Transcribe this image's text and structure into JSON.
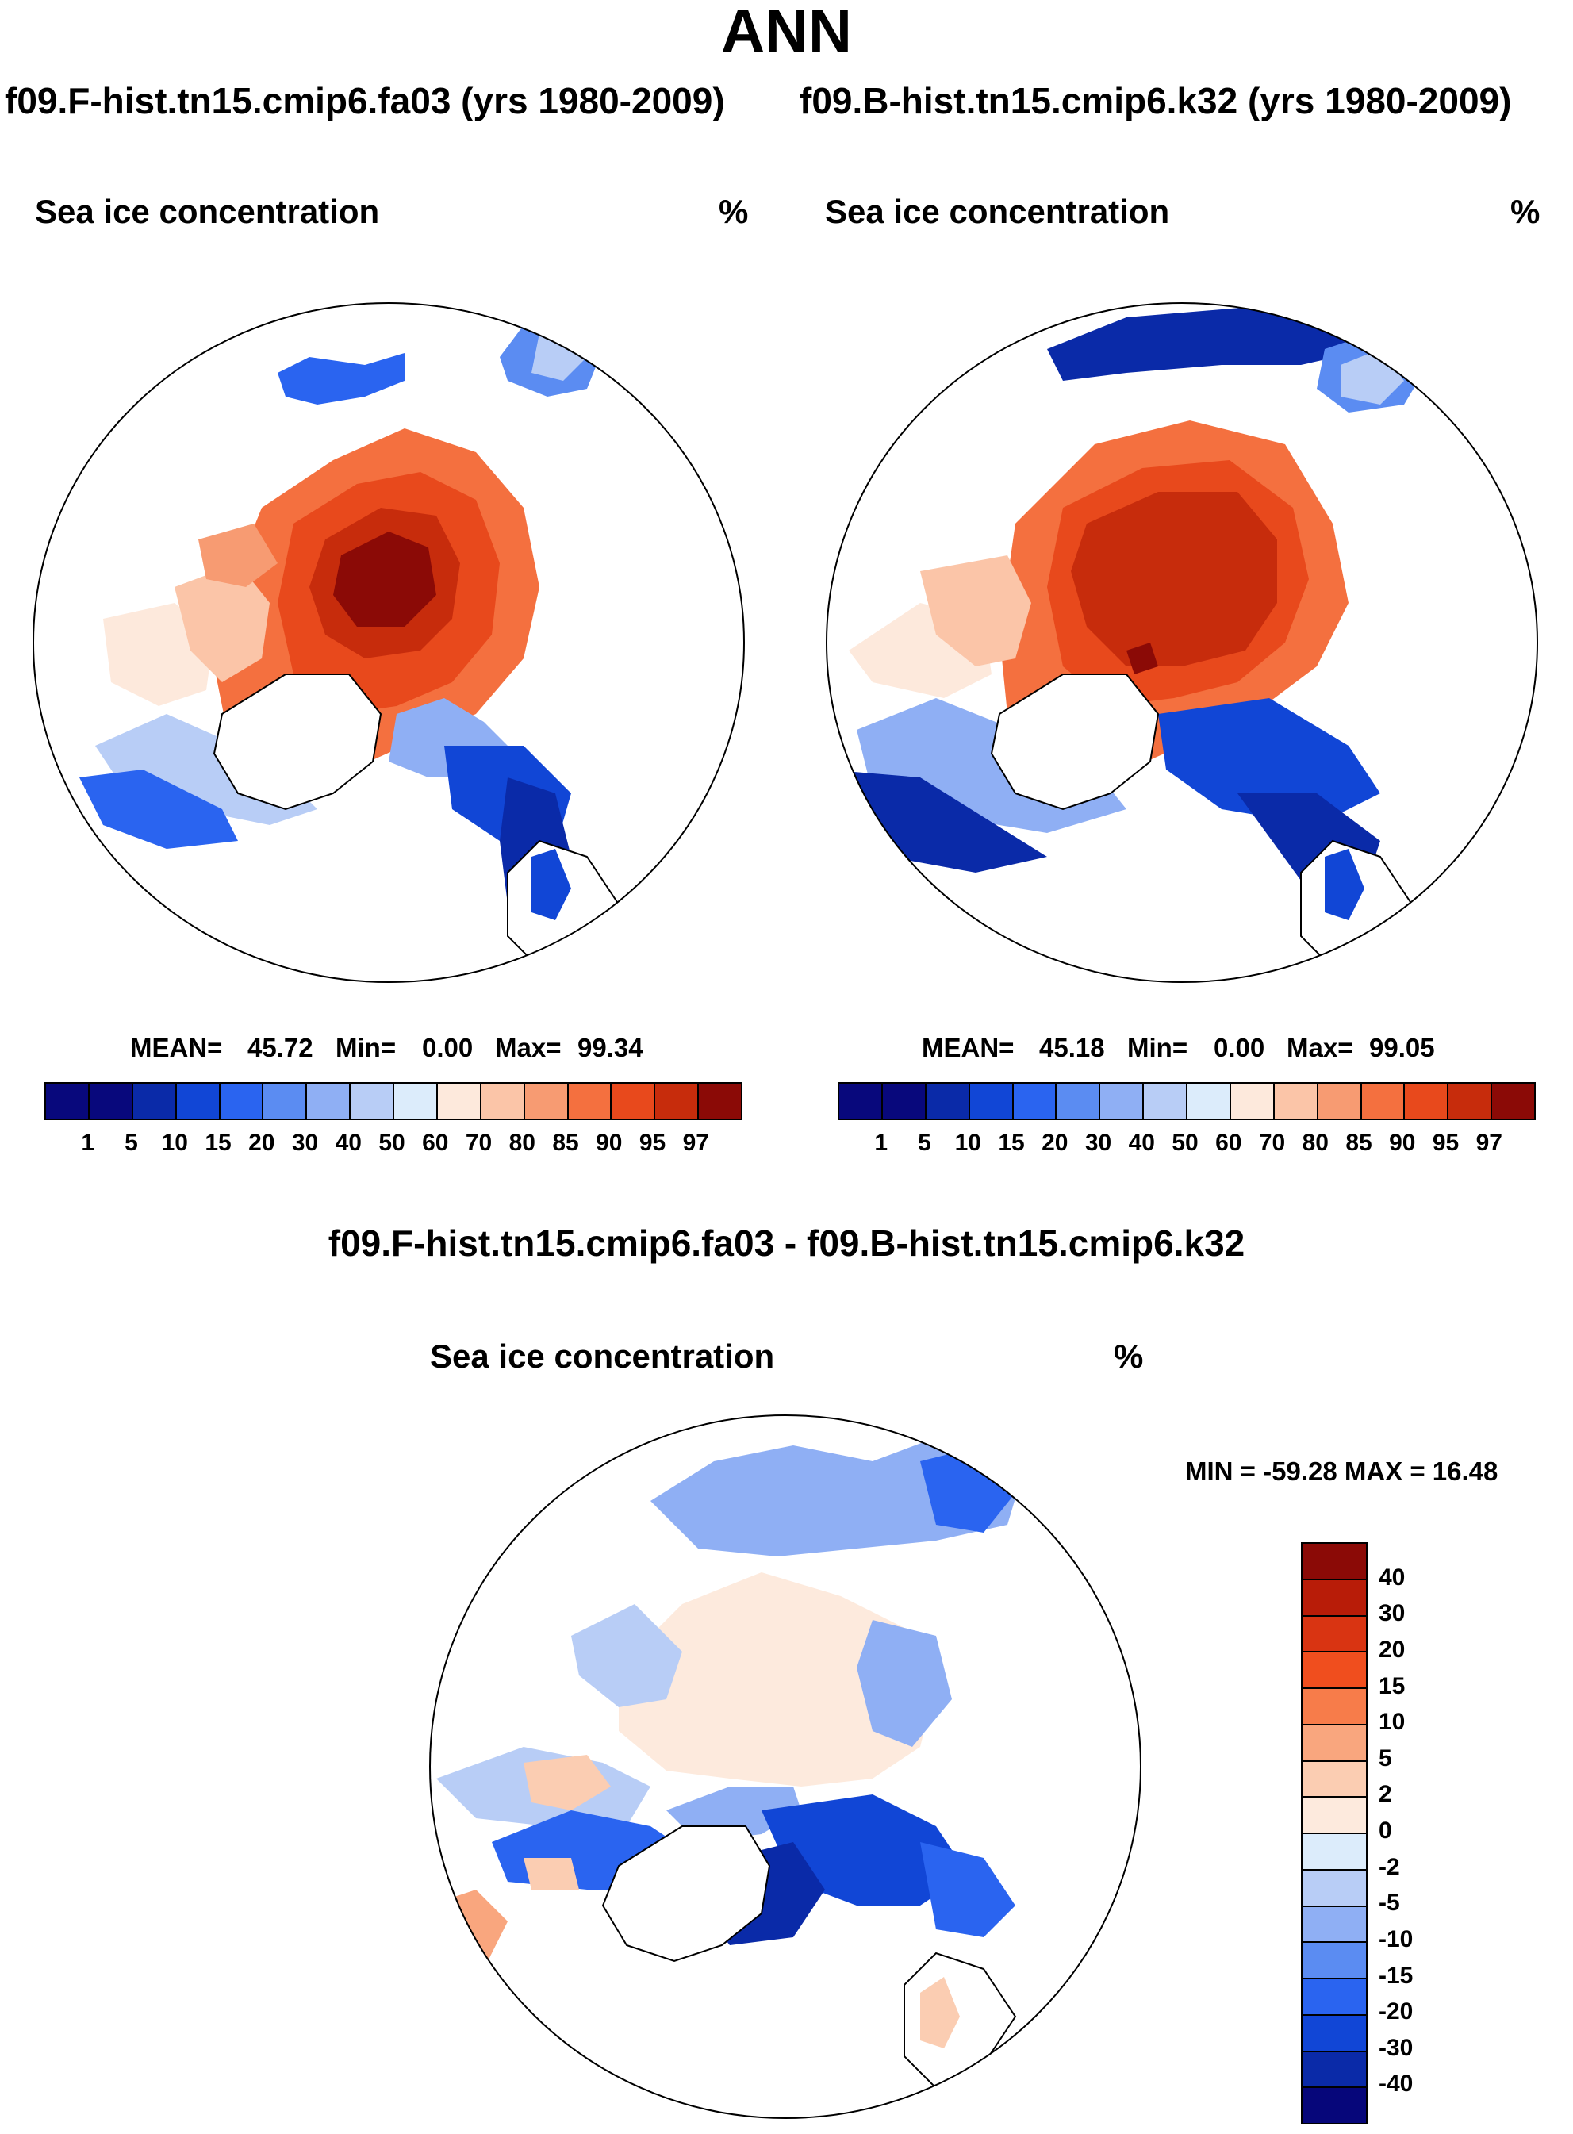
{
  "title": "ANN",
  "panels": [
    {
      "case": "f09.F-hist.tn15.cmip6.fa03 (yrs 1980-2009)",
      "field": "Sea ice concentration",
      "units": "%",
      "stats": {
        "mean": "45.72",
        "min": "0.00",
        "max": "99.34"
      }
    },
    {
      "case": "f09.B-hist.tn15.cmip6.k32 (yrs 1980-2009)",
      "field": "Sea ice concentration",
      "units": "%",
      "stats": {
        "mean": "45.18",
        "min": "0.00",
        "max": "99.05"
      }
    }
  ],
  "colorbar": {
    "labels": [
      "1",
      "5",
      "10",
      "15",
      "20",
      "30",
      "40",
      "50",
      "60",
      "70",
      "80",
      "85",
      "90",
      "95",
      "97"
    ],
    "colors": [
      "#08087c",
      "#0a2aa8",
      "#1146d6",
      "#2a64f0",
      "#5b8cf2",
      "#8faff4",
      "#b8cdf6",
      "#dcecfb",
      "#fde9dc",
      "#fbc5a8",
      "#f79b72",
      "#f4703f",
      "#e8491c",
      "#c72c0c",
      "#8b0a06"
    ]
  },
  "difference": {
    "title": "f09.F-hist.tn15.cmip6.fa03 - f09.B-hist.tn15.cmip6.k32",
    "field": "Sea ice concentration",
    "units": "%",
    "minmax": "MIN = -59.28 MAX =  16.48",
    "colorbar_labels": [
      "40",
      "30",
      "20",
      "15",
      "10",
      "5",
      "2",
      "0",
      "-2",
      "-5",
      "-10",
      "-15",
      "-20",
      "-30",
      "-40"
    ],
    "colorbar_colors": [
      "#8b0a06",
      "#b81c08",
      "#d93412",
      "#f04e1e",
      "#f77c4a",
      "#f9a67e",
      "#fbcdb2",
      "#fdeadd",
      "#dcecfb",
      "#b8cdf6",
      "#8faff4",
      "#5b8cf2",
      "#2a64f0",
      "#1146d6",
      "#0a2aa8",
      "#06067a"
    ]
  },
  "chart_data": [
    {
      "type": "heatmap",
      "title": "Sea ice concentration",
      "subtitle": "f09.F-hist.tn15.cmip6.fa03 (yrs 1980-2009)",
      "units": "%",
      "mean": 45.72,
      "min": 0.0,
      "max": 99.34,
      "contour_levels": [
        1,
        5,
        10,
        15,
        20,
        30,
        40,
        50,
        60,
        70,
        80,
        85,
        90,
        95,
        97
      ]
    },
    {
      "type": "heatmap",
      "title": "Sea ice concentration",
      "subtitle": "f09.B-hist.tn15.cmip6.k32 (yrs 1980-2009)",
      "units": "%",
      "mean": 45.18,
      "min": 0.0,
      "max": 99.05,
      "contour_levels": [
        1,
        5,
        10,
        15,
        20,
        30,
        40,
        50,
        60,
        70,
        80,
        85,
        90,
        95,
        97
      ]
    },
    {
      "type": "heatmap",
      "title": "Sea ice concentration",
      "subtitle": "f09.F-hist.tn15.cmip6.fa03 - f09.B-hist.tn15.cmip6.k32",
      "units": "%",
      "min": -59.28,
      "max": 16.48,
      "contour_levels": [
        -40,
        -30,
        -20,
        -15,
        -10,
        -5,
        -2,
        0,
        2,
        5,
        10,
        15,
        20,
        30,
        40
      ]
    }
  ]
}
